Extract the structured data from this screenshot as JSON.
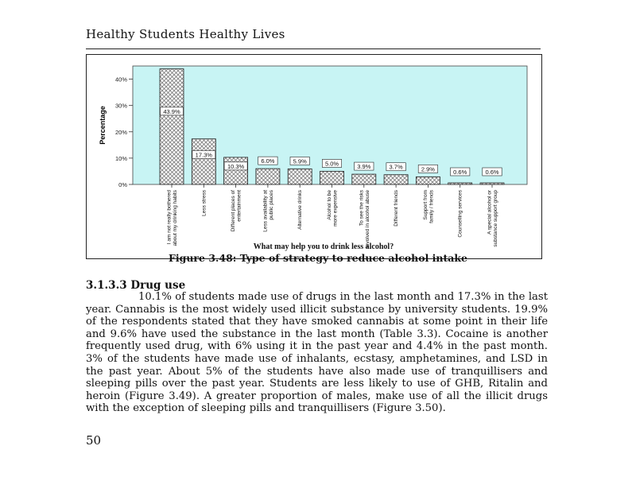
{
  "page": {
    "running_head": "Healthy Students Healthy Lives",
    "figure_caption": "Figure 3.48: Type of strategy to reduce alcohol intake",
    "section_heading": "3.1.3.3 Drug use",
    "paragraph": "10.1% of students made use of drugs in the last month and 17.3% in the last year.  Cannabis is the most widely used illicit substance by university students.  19.9% of the respondents stated that they have smoked cannabis at some point in their life and 9.6% have used the substance in the last month (Table 3.3). Cocaine is another frequently used drug, with 6% using it in the past year and 4.4% in the past month. 3% of the students have made use of inhalants, ecstasy, amphetamines, and LSD in the past year. About 5% of the students have also made use of tranquillisers and sleeping pills over the past year. Students are less likely to use of GHB, Ritalin and heroin (Figure 3.49).  A greater proportion of males, make use of all the illicit drugs with the exception of sleeping pills and tranquillisers (Figure 3.50).",
    "page_number": "50"
  },
  "chart_data": {
    "type": "bar",
    "xlabel": "What may help you to drink less alcohol?",
    "ylabel": "Percentage",
    "ylim": [
      0,
      45
    ],
    "yticks": [
      "0%",
      "10%",
      "20%",
      "30%",
      "40%"
    ],
    "yticks_values": [
      0,
      10,
      20,
      30,
      40
    ],
    "categories": [
      "I am not really bothered about my drinking habits",
      "Less stress",
      "Different places of entertainment",
      "Less availability at public places",
      "Alternative drinks",
      "Alcohol to be more expensive",
      "To see the risks involved in alcohol abuse",
      "Different friends",
      "Support from family / friends",
      "Counselling services",
      "A special alcohol or substance support group"
    ],
    "values": [
      43.9,
      17.3,
      10.3,
      6.0,
      5.9,
      5.0,
      3.9,
      3.7,
      2.9,
      0.6,
      0.6
    ],
    "data_labels": [
      "43.9%",
      "17.3%",
      "10.3%",
      "6.0%",
      "5.9%",
      "5.0%",
      "3.9%",
      "3.7%",
      "2.9%",
      "0.6%",
      "0.6%"
    ],
    "colors": {
      "plot_bg": "#c8f4f4",
      "bar_fill": "#f2f2f2",
      "bar_stroke": "#222222"
    }
  }
}
